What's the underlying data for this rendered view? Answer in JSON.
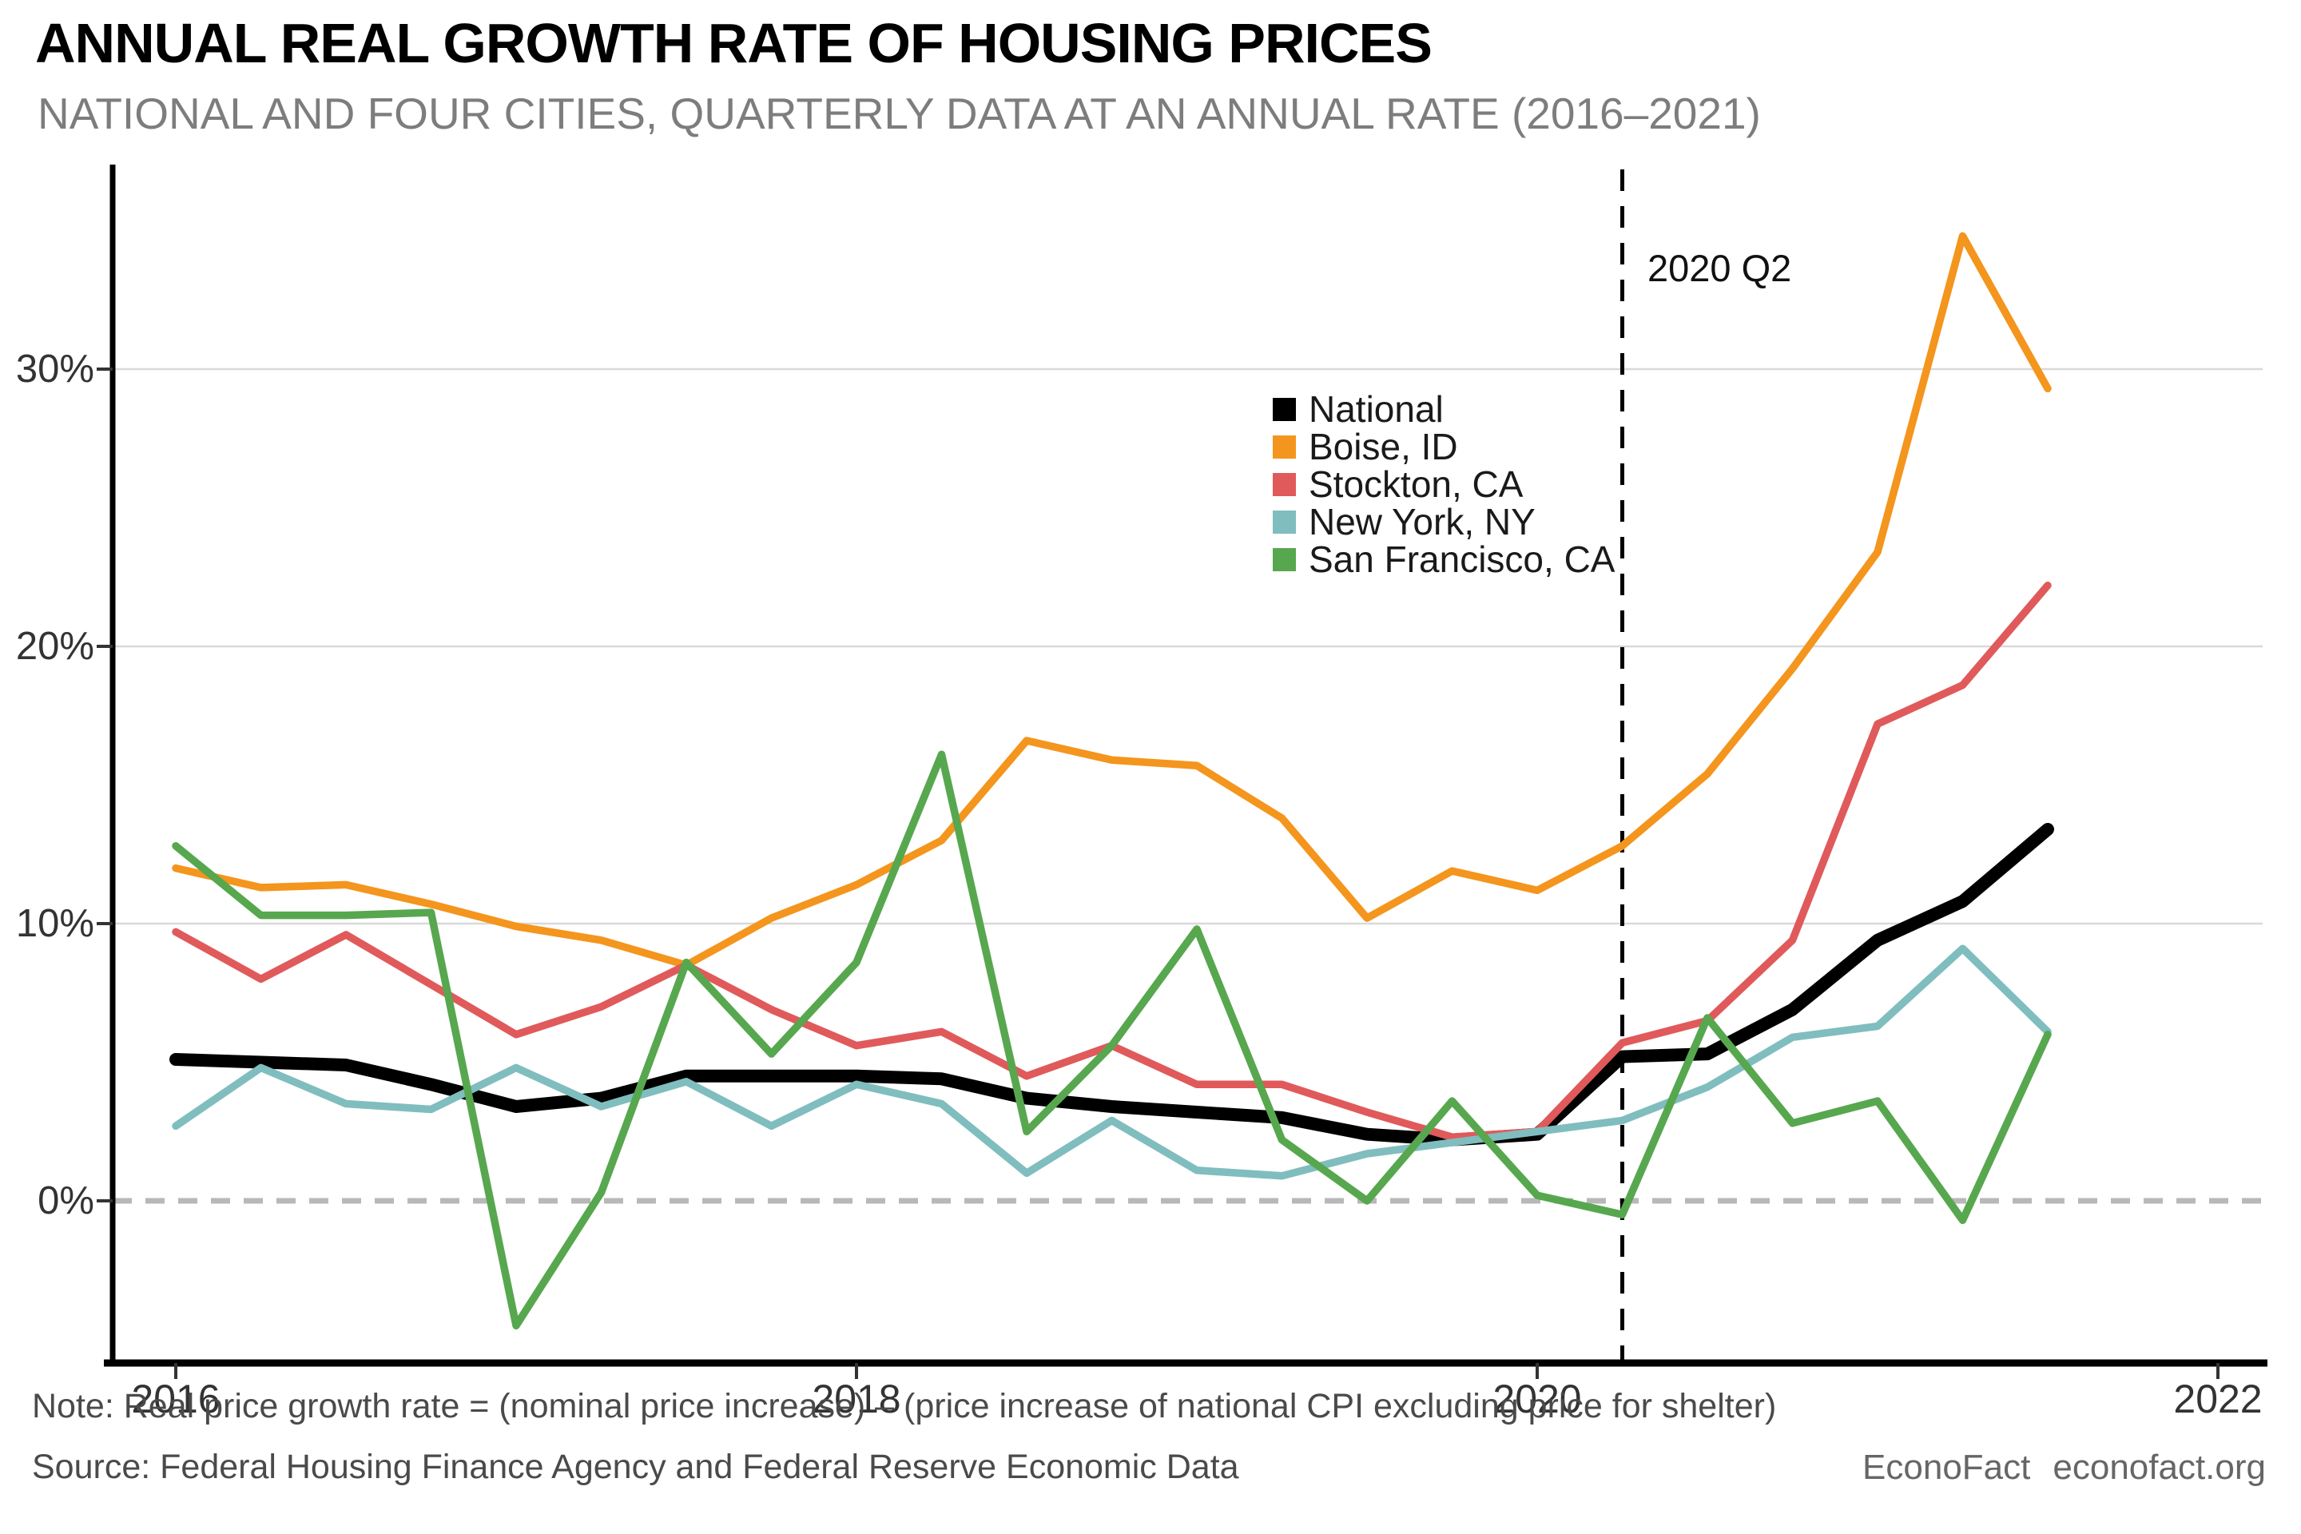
{
  "header": {
    "title": "ANNUAL REAL GROWTH RATE OF HOUSING PRICES",
    "subtitle": "NATIONAL AND FOUR CITIES, QUARTERLY DATA AT AN ANNUAL RATE (2016–2021)"
  },
  "footer": {
    "note": "Note: Real price growth rate = (nominal price increase) – (price increase of national CPI excluding price for shelter)",
    "source": "Source: Federal Housing Finance Agency and Federal Reserve Economic Data",
    "brand": "EconoFact",
    "site": "econofact.org"
  },
  "chart_data": {
    "type": "line",
    "title": "ANNUAL REAL GROWTH RATE OF HOUSING PRICES",
    "subtitle": "NATIONAL AND FOUR CITIES, QUARTERLY DATA AT AN ANNUAL RATE (2016–2021)",
    "x_unit": "quarter",
    "x_start": "2016 Q1",
    "x_end": "2021 Q3",
    "n_points": 23,
    "x_tick_labels": [
      "2016",
      "2018",
      "2020",
      "2022"
    ],
    "x_tick_quarter_index": [
      0,
      8,
      16,
      24
    ],
    "y_tick_labels": [
      "0%",
      "10%",
      "20%",
      "30%"
    ],
    "y_tick_values": [
      0,
      10,
      20,
      30
    ],
    "ylim": [
      -6.0,
      37.0
    ],
    "grid": "horizontal",
    "zero_line": "dashed-gray",
    "legend_position": "inside-top-middle",
    "annotation": {
      "label": "2020 Q2",
      "quarter_index": 17,
      "style": "dashed-vertical-black"
    },
    "colors": {
      "national": "#000000",
      "boise": "#F4951D",
      "stockton": "#E05A5B",
      "new_york": "#80BDBE",
      "san_francisco": "#57A74F",
      "gridline": "#d9d9d9",
      "zero_line": "#b8b8b8",
      "axis": "#000000"
    },
    "series": [
      {
        "name": "National",
        "color": "#000000",
        "thick": true,
        "values": [
          5.1,
          5.0,
          4.9,
          4.2,
          3.4,
          3.7,
          4.5,
          4.5,
          4.5,
          4.4,
          3.7,
          3.4,
          3.2,
          3.0,
          2.4,
          2.2,
          2.4,
          5.2,
          5.3,
          6.9,
          9.4,
          10.8,
          13.4
        ]
      },
      {
        "name": "Boise, ID",
        "color": "#F4951D",
        "thick": false,
        "values": [
          12.0,
          11.3,
          11.4,
          10.7,
          9.9,
          9.4,
          8.5,
          10.2,
          11.4,
          13.0,
          16.6,
          15.9,
          15.7,
          13.8,
          10.2,
          11.9,
          11.2,
          12.8,
          15.4,
          19.2,
          23.4,
          34.8,
          29.3
        ]
      },
      {
        "name": "Stockton, CA",
        "color": "#E05A5B",
        "thick": false,
        "values": [
          9.7,
          8.0,
          9.6,
          7.8,
          6.0,
          7.0,
          8.5,
          6.9,
          5.6,
          6.1,
          4.5,
          5.6,
          4.2,
          4.2,
          3.2,
          2.3,
          2.5,
          5.7,
          6.5,
          9.4,
          17.2,
          18.6,
          22.2
        ]
      },
      {
        "name": "New York, NY",
        "color": "#80BDBE",
        "thick": false,
        "values": [
          2.7,
          4.8,
          3.5,
          3.3,
          4.8,
          3.4,
          4.3,
          2.7,
          4.2,
          3.5,
          1.0,
          2.9,
          1.1,
          0.9,
          1.7,
          2.1,
          2.5,
          2.9,
          4.1,
          5.9,
          6.3,
          9.1,
          6.1
        ]
      },
      {
        "name": "San Francisco, CA",
        "color": "#57A74F",
        "thick": false,
        "values": [
          12.8,
          10.3,
          10.3,
          10.4,
          -4.5,
          0.3,
          8.6,
          5.3,
          8.6,
          16.1,
          2.5,
          5.6,
          9.8,
          2.2,
          0.0,
          3.6,
          0.2,
          -0.5,
          6.6,
          2.8,
          3.6,
          -0.7,
          6.0
        ]
      }
    ]
  }
}
